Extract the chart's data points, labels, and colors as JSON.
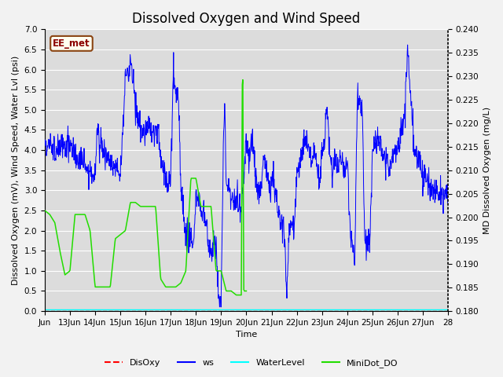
{
  "title": "Dissolved Oxygen and Wind Speed",
  "ylabel_left": "Dissolved Oxygen (mV), Wind Speed, Water Lvl (psi)",
  "ylabel_right": "MD Dissolved Oxygen (mg/L)",
  "xlabel": "Time",
  "annotation": "EE_met",
  "ylim_left": [
    0.0,
    7.0
  ],
  "ylim_right": [
    0.18,
    0.24
  ],
  "x_tick_labels": [
    "Jun",
    "13Jun",
    "14Jun",
    "15Jun",
    "16Jun",
    "17Jun",
    "18Jun",
    "19Jun",
    "20Jun",
    "21Jun",
    "22Jun",
    "23Jun",
    "24Jun",
    "25Jun",
    "26Jun",
    "27Jun",
    "28"
  ],
  "background_color": "#DCDCDC",
  "title_fontsize": 12,
  "axis_fontsize": 8,
  "tick_fontsize": 7.5,
  "fig_facecolor": "#F2F2F2"
}
